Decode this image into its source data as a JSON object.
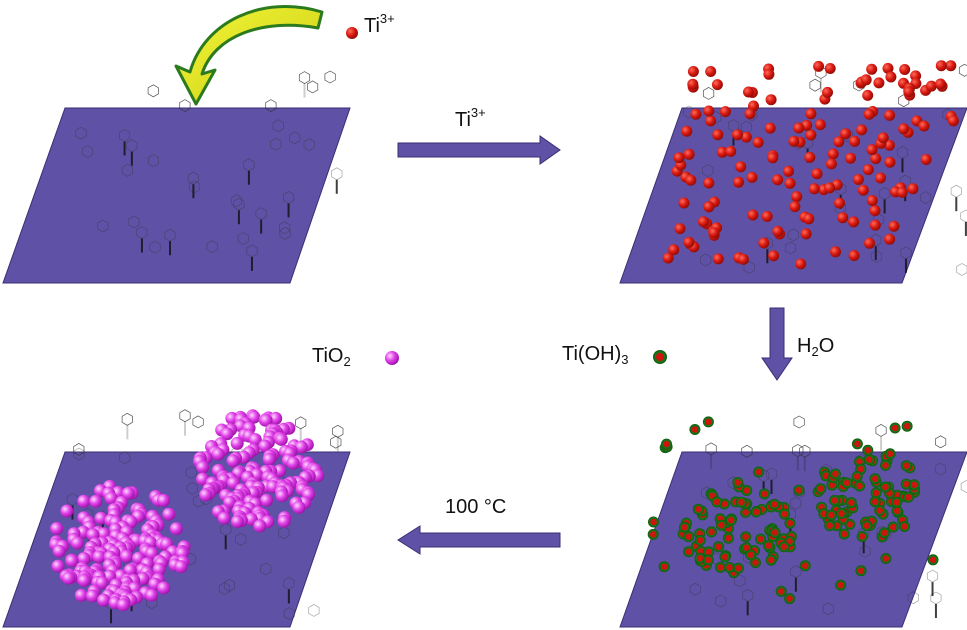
{
  "labels": {
    "ti3_base": "Ti",
    "ti3_sup": "3+",
    "arrow1_base": "Ti",
    "arrow1_sup": "3+",
    "h2o_h": "H",
    "h2o_sub": "2",
    "h2o_o": "O",
    "tioh3_base": "Ti(OH)",
    "tioh3_sub": "3",
    "tio2_base": "TiO",
    "tio2_sub": "2",
    "temp_label": "100 °C"
  },
  "colors": {
    "substrate": "#5f51a5",
    "substrate_edge": "#3a2f75",
    "arrow": "#5f51a5",
    "ti3_particle": "#d6170f",
    "tioh3_core": "#d6170f",
    "tioh3_shell": "#1b7a1b",
    "tio2_particle": "#e040e8",
    "curved_arrow_fill": "#e6e81a",
    "curved_arrow_edge": "#2c7a1e",
    "molecule_ink": "#333333"
  }
}
